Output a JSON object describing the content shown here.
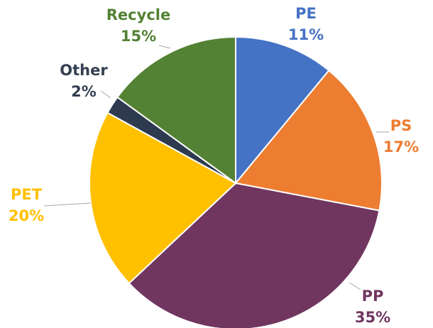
{
  "chart_data": {
    "type": "pie",
    "categories": [
      "PE",
      "PS",
      "PP",
      "PET",
      "Other",
      "Recycle"
    ],
    "values": [
      11,
      17,
      35,
      20,
      2,
      15
    ],
    "value_labels": [
      "11%",
      "17%",
      "35%",
      "20%",
      "2%",
      "15%"
    ],
    "colors": [
      "#4472c4",
      "#ed7d31",
      "#70365f",
      "#ffc000",
      "#2d3a4f",
      "#548235"
    ]
  }
}
